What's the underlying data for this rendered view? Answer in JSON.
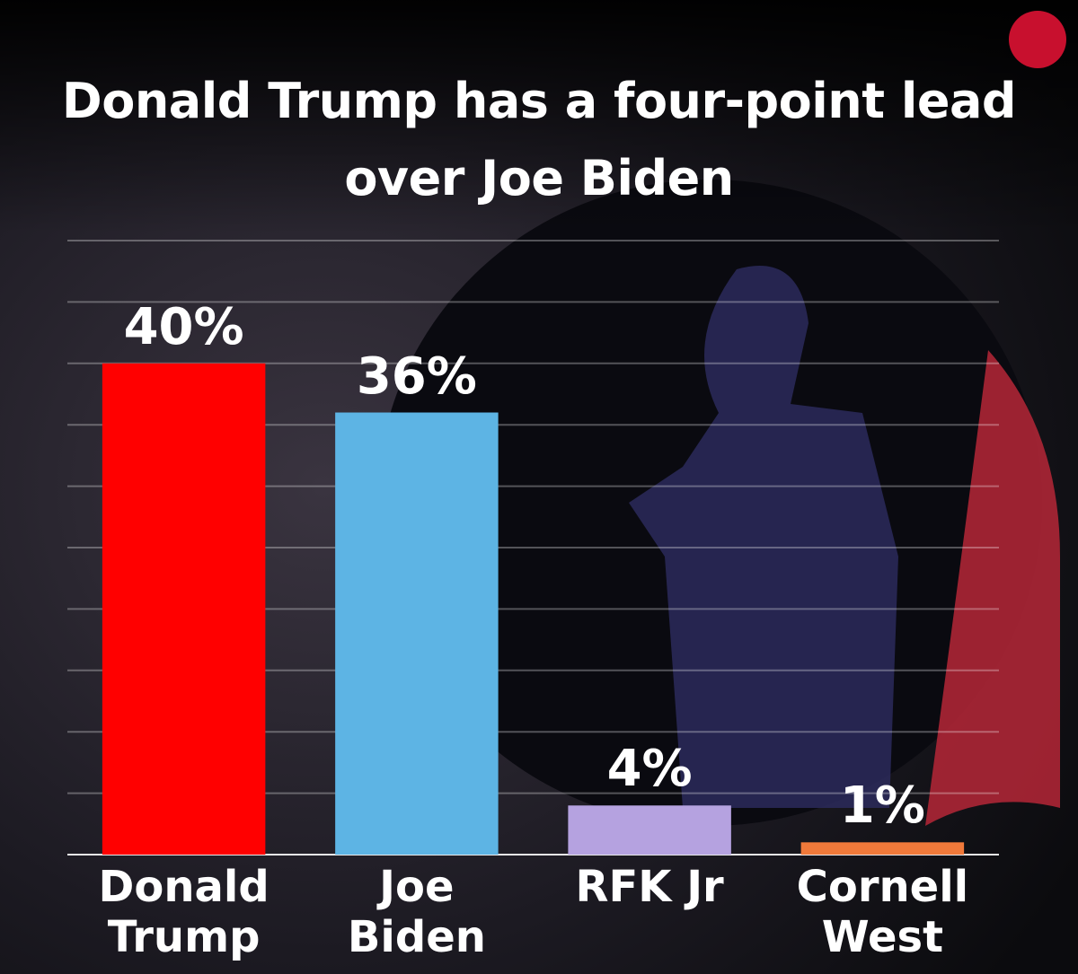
{
  "chart_data": {
    "type": "bar",
    "title": "Donald Trump has a four-point lead over Joe Biden",
    "categories": [
      "Donald Trump",
      "Joe Biden",
      "RFK Jr",
      "Cornell West"
    ],
    "values": [
      40,
      36,
      4,
      1
    ],
    "value_labels": [
      "40%",
      "36%",
      "4%",
      "1%"
    ],
    "colors": [
      "#ff0000",
      "#5db4e4",
      "#b5a2e0",
      "#f0793a"
    ],
    "ylim": [
      0,
      50
    ],
    "yticks": [
      0,
      5,
      10,
      15,
      20,
      25,
      30,
      35,
      40,
      45,
      50
    ],
    "grid": true
  }
}
